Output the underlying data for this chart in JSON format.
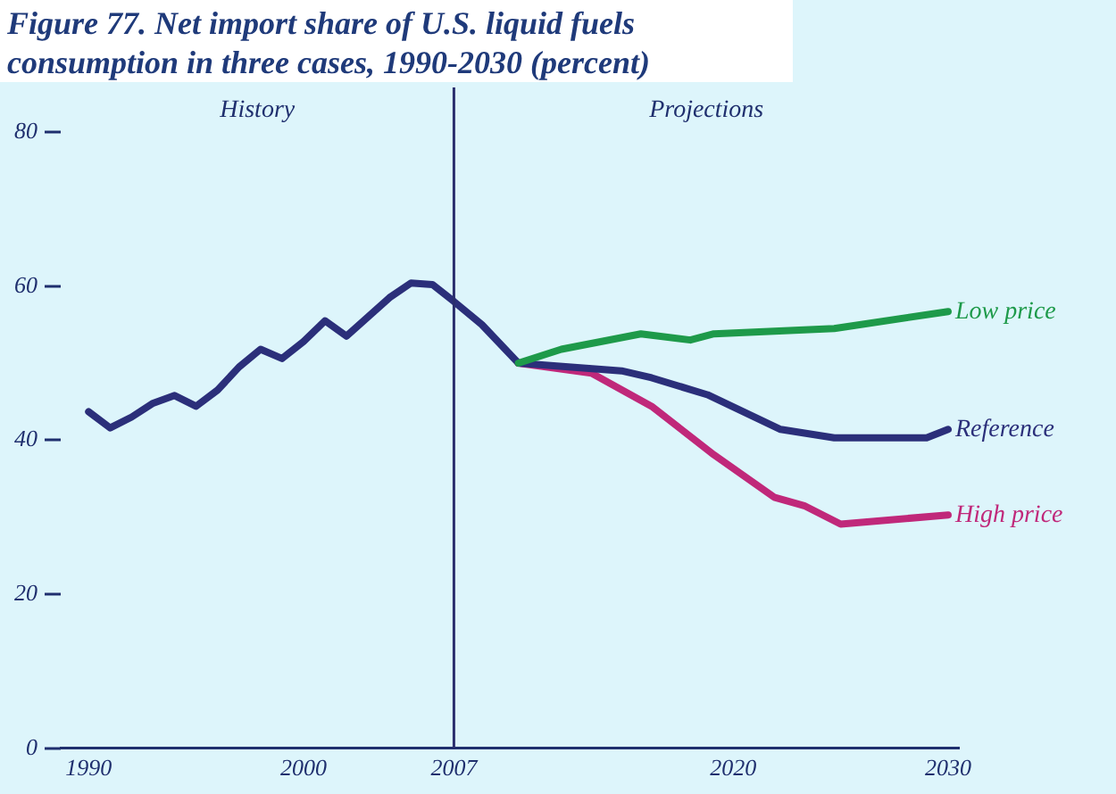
{
  "chart_data": {
    "type": "line",
    "title": "Figure 77. Net import share of U.S. liquid fuels consumption in three cases, 1990-2030 (percent)",
    "annotations": [
      "History",
      "Projections"
    ],
    "xlim": [
      1988.7,
      2030.5
    ],
    "xticks": [
      1990,
      2000,
      2007,
      2020,
      2030
    ],
    "ylim": [
      0,
      80
    ],
    "yticks": [
      0,
      20,
      40,
      60,
      80
    ],
    "grid": false,
    "legend": false,
    "marker": "none",
    "line_style": "solid",
    "ref_lines": [
      {
        "axis": "x",
        "value": 2007,
        "color": "#2b2f6e"
      }
    ],
    "series": [
      {
        "name": "Low price",
        "color": "#1e9a4a",
        "x": [
          2010,
          2012,
          2015.7,
          2018,
          2019.1,
          2024.7,
          2030
        ],
        "values": [
          50,
          51.8,
          53.8,
          53,
          53.8,
          54.5,
          56.7
        ]
      },
      {
        "name": "Reference",
        "color": "#2b2f7a",
        "x": [
          1990,
          1991,
          1992,
          1993,
          1994,
          1995,
          1996,
          1997,
          1998,
          1999,
          2000,
          2001,
          2002,
          2003,
          2004,
          2005,
          2006,
          2007,
          2008.3,
          2010,
          2014.8,
          2016.2,
          2018.8,
          2022.2,
          2024.7,
          2029,
          2030
        ],
        "values": [
          43.7,
          41.6,
          43,
          44.8,
          45.8,
          44.4,
          46.5,
          49.5,
          51.8,
          50.6,
          52.8,
          55.5,
          53.5,
          56,
          58.5,
          60.4,
          60.2,
          58,
          55,
          50,
          49,
          48.1,
          45.9,
          41.4,
          40.3,
          40.3,
          41.4
        ]
      },
      {
        "name": "High price",
        "color": "#c0287a",
        "x": [
          2010,
          2013.4,
          2016.2,
          2019.1,
          2021.9,
          2023.3,
          2025,
          2030
        ],
        "values": [
          50,
          48.7,
          44.4,
          38.1,
          32.6,
          31.5,
          29.1,
          30.3
        ]
      }
    ]
  }
}
